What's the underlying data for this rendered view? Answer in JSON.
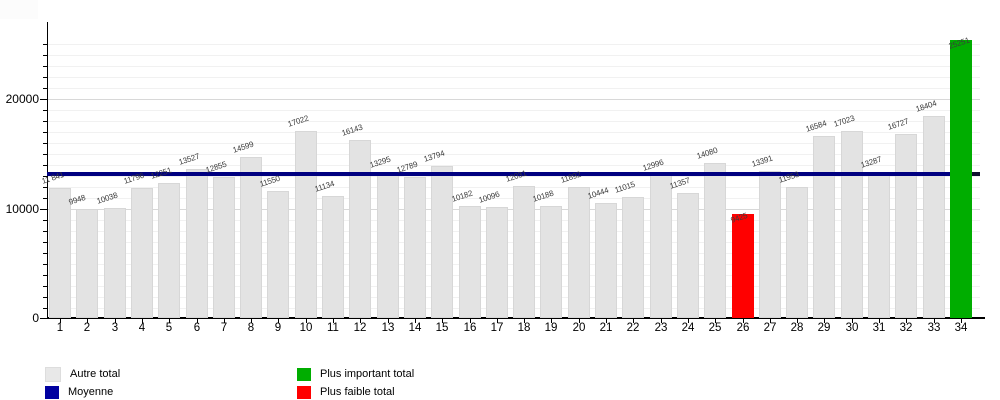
{
  "chart_data": {
    "type": "bar",
    "title": "",
    "categories": [
      "1",
      "2",
      "3",
      "4",
      "5",
      "6",
      "7",
      "8",
      "9",
      "10",
      "11",
      "12",
      "13",
      "14",
      "15",
      "16",
      "17",
      "18",
      "19",
      "20",
      "21",
      "22",
      "23",
      "24",
      "25",
      "26",
      "27",
      "28",
      "29",
      "30",
      "31",
      "32",
      "33",
      "34"
    ],
    "values": [
      11841,
      9948,
      10038,
      11796,
      12251,
      13527,
      12855,
      14599,
      11550,
      17022,
      11134,
      16143,
      13295,
      12789,
      13794,
      10182,
      10096,
      12031,
      10188,
      11892,
      10444,
      11015,
      12996,
      11357,
      14080,
      9425,
      13391,
      11953,
      16584,
      17023,
      13287,
      16727,
      18404,
      25251
    ],
    "value_labels": [
      "11 841",
      "9948",
      "10038",
      "11796",
      "12251",
      "13527",
      "12855",
      "14599",
      "11550",
      "17022",
      "11134",
      "16143",
      "13295",
      "12789",
      "13794",
      "10182",
      "10096",
      "12031",
      "10188",
      "11892",
      "10444",
      "11015",
      "12996",
      "11357",
      "14080",
      "9425",
      "13391",
      "11953",
      "16584",
      "17023",
      "13287",
      "16727",
      "18404",
      "25251"
    ],
    "xlabel": "",
    "ylabel": "",
    "yticks": [
      0,
      10000,
      20000
    ],
    "ytick_labels": [
      "0",
      "10000",
      "20000"
    ],
    "ylim": [
      0,
      26500
    ],
    "grid": {
      "horizontal_minor_step": 1000,
      "major_lines": [
        10000,
        20000
      ]
    },
    "average_line": {
      "label": "Moyenne",
      "note": "mean of all 34 values"
    },
    "highlight": {
      "max_category": "34",
      "max_value": 25251,
      "min_category": "26",
      "min_value": 9425
    },
    "legend_position": "bottom",
    "legend": [
      {
        "label": "Autre total",
        "color": "#e8e8e8"
      },
      {
        "label": "Moyenne",
        "color": "#0000a0"
      },
      {
        "label": "Plus important total",
        "color": "#00ad00"
      },
      {
        "label": "Plus faible total",
        "color": "#ff0000"
      }
    ]
  },
  "colors": {
    "background": "#ffffff",
    "bar_default": "#e3e3e3",
    "bar_border": "#d7d7d7",
    "bar_max": "#00ad00",
    "bar_min": "#ff0000",
    "average_line": "#000080",
    "grid_minor": "#f1f1f1",
    "grid_major": "#d8d8d8",
    "axis": "#000000",
    "value_label": "#3a3a3a"
  }
}
